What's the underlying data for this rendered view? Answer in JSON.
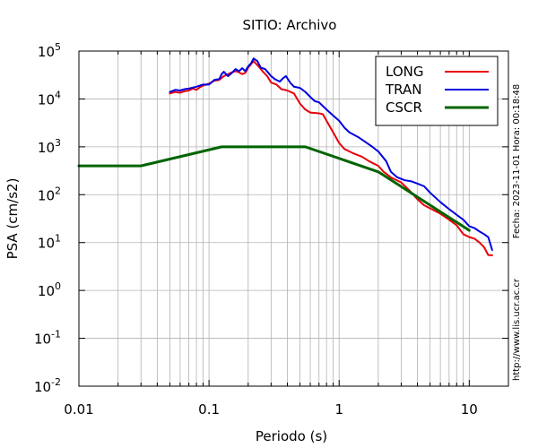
{
  "chart_data": {
    "type": "line",
    "title": "SITIO: Archivo",
    "xlabel": "Periodo (s)",
    "ylabel": "PSA (cm/s2)",
    "x_scale": "log",
    "y_scale": "log",
    "xlim": [
      0.01,
      20
    ],
    "ylim": [
      0.01,
      100000
    ],
    "x_ticks": [
      {
        "value": 0.01,
        "label": "0.01"
      },
      {
        "value": 0.1,
        "label": "0.1"
      },
      {
        "value": 1,
        "label": "1"
      },
      {
        "value": 10,
        "label": "10"
      }
    ],
    "y_ticks": [
      {
        "value": 0.01,
        "base": "10",
        "exp": "-2"
      },
      {
        "value": 0.1,
        "base": "10",
        "exp": "-1"
      },
      {
        "value": 1,
        "base": "10",
        "exp": "0"
      },
      {
        "value": 10,
        "base": "10",
        "exp": "1"
      },
      {
        "value": 100,
        "base": "10",
        "exp": "2"
      },
      {
        "value": 1000,
        "base": "10",
        "exp": "3"
      },
      {
        "value": 10000,
        "base": "10",
        "exp": "4"
      },
      {
        "value": 100000,
        "base": "10",
        "exp": "5"
      }
    ],
    "grid": true,
    "legend_position": "top-right",
    "series": [
      {
        "name": "LONG",
        "color": "#e8000b",
        "width": 2,
        "points": [
          [
            0.05,
            13000
          ],
          [
            0.055,
            14000
          ],
          [
            0.06,
            13500
          ],
          [
            0.065,
            14500
          ],
          [
            0.07,
            15000
          ],
          [
            0.075,
            16500
          ],
          [
            0.08,
            15500
          ],
          [
            0.085,
            17500
          ],
          [
            0.09,
            19000
          ],
          [
            0.1,
            21000
          ],
          [
            0.11,
            24000
          ],
          [
            0.12,
            25000
          ],
          [
            0.13,
            30000
          ],
          [
            0.14,
            33000
          ],
          [
            0.15,
            36000
          ],
          [
            0.16,
            38000
          ],
          [
            0.17,
            36000
          ],
          [
            0.18,
            33000
          ],
          [
            0.19,
            35000
          ],
          [
            0.2,
            45000
          ],
          [
            0.22,
            62000
          ],
          [
            0.24,
            48000
          ],
          [
            0.26,
            37000
          ],
          [
            0.28,
            30000
          ],
          [
            0.3,
            22000
          ],
          [
            0.33,
            20000
          ],
          [
            0.36,
            16000
          ],
          [
            0.4,
            15000
          ],
          [
            0.45,
            13000
          ],
          [
            0.5,
            8000
          ],
          [
            0.55,
            6000
          ],
          [
            0.6,
            5200
          ],
          [
            0.7,
            5000
          ],
          [
            0.75,
            4800
          ],
          [
            0.8,
            3500
          ],
          [
            0.9,
            2000
          ],
          [
            1.0,
            1200
          ],
          [
            1.1,
            900
          ],
          [
            1.2,
            800
          ],
          [
            1.3,
            720
          ],
          [
            1.5,
            620
          ],
          [
            1.7,
            500
          ],
          [
            2.0,
            400
          ],
          [
            2.2,
            300
          ],
          [
            2.5,
            230
          ],
          [
            3.0,
            180
          ],
          [
            3.5,
            120
          ],
          [
            4.0,
            80
          ],
          [
            4.5,
            60
          ],
          [
            5.0,
            52
          ],
          [
            6.0,
            40
          ],
          [
            7.0,
            30
          ],
          [
            8.0,
            23
          ],
          [
            9.0,
            15
          ],
          [
            10.0,
            13
          ],
          [
            11.0,
            12
          ],
          [
            12.0,
            10
          ],
          [
            13.0,
            8
          ],
          [
            14.0,
            5.5
          ],
          [
            15.0,
            5.4
          ]
        ]
      },
      {
        "name": "TRAN",
        "color": "#0000e0",
        "width": 2,
        "points": [
          [
            0.05,
            14000
          ],
          [
            0.055,
            15500
          ],
          [
            0.06,
            15000
          ],
          [
            0.065,
            16000
          ],
          [
            0.07,
            16500
          ],
          [
            0.08,
            18000
          ],
          [
            0.09,
            20000
          ],
          [
            0.1,
            20000
          ],
          [
            0.11,
            25000
          ],
          [
            0.12,
            26000
          ],
          [
            0.125,
            33000
          ],
          [
            0.13,
            37000
          ],
          [
            0.14,
            30000
          ],
          [
            0.15,
            35000
          ],
          [
            0.16,
            42000
          ],
          [
            0.17,
            38000
          ],
          [
            0.18,
            44000
          ],
          [
            0.19,
            38000
          ],
          [
            0.2,
            48000
          ],
          [
            0.21,
            55000
          ],
          [
            0.22,
            70000
          ],
          [
            0.235,
            62000
          ],
          [
            0.25,
            45000
          ],
          [
            0.27,
            42000
          ],
          [
            0.3,
            30000
          ],
          [
            0.32,
            26000
          ],
          [
            0.35,
            23000
          ],
          [
            0.37,
            27000
          ],
          [
            0.39,
            30000
          ],
          [
            0.42,
            22000
          ],
          [
            0.45,
            18000
          ],
          [
            0.5,
            17000
          ],
          [
            0.55,
            14000
          ],
          [
            0.6,
            11000
          ],
          [
            0.65,
            9000
          ],
          [
            0.7,
            8500
          ],
          [
            0.8,
            6000
          ],
          [
            0.9,
            4500
          ],
          [
            1.0,
            3500
          ],
          [
            1.1,
            2500
          ],
          [
            1.2,
            2000
          ],
          [
            1.4,
            1600
          ],
          [
            1.6,
            1250
          ],
          [
            1.8,
            1000
          ],
          [
            2.0,
            800
          ],
          [
            2.3,
            500
          ],
          [
            2.5,
            300
          ],
          [
            2.8,
            230
          ],
          [
            3.2,
            200
          ],
          [
            3.6,
            190
          ],
          [
            4.0,
            170
          ],
          [
            4.5,
            150
          ],
          [
            5.0,
            110
          ],
          [
            6.0,
            70
          ],
          [
            7.0,
            50
          ],
          [
            8.0,
            38
          ],
          [
            9.0,
            30
          ],
          [
            10.0,
            22
          ],
          [
            11.0,
            20
          ],
          [
            12.0,
            17
          ],
          [
            13.0,
            15
          ],
          [
            14.0,
            13
          ],
          [
            15.0,
            7
          ]
        ]
      },
      {
        "name": "CSCR",
        "color": "#006400",
        "width": 3,
        "points": [
          [
            0.01,
            400
          ],
          [
            0.03,
            400
          ],
          [
            0.125,
            1000
          ],
          [
            0.55,
            1000
          ],
          [
            2.0,
            300
          ],
          [
            10.0,
            18
          ]
        ]
      }
    ]
  },
  "side_text": {
    "timestamp": "Fecha: 2023-11-01  Hora: 00:18:48",
    "url": "http://www.lis.ucr.ac.cr"
  }
}
